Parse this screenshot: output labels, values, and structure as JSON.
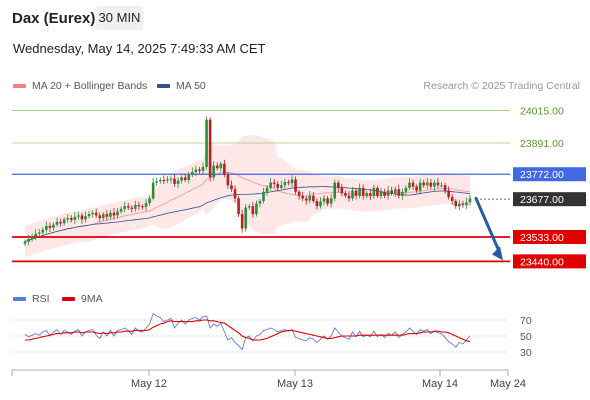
{
  "header": {
    "title": "Dax (Eurex)",
    "timeframe": "30 MIN",
    "datetime": "Wednesday, May 14, 2025 7:49:33 AM CET"
  },
  "legend": {
    "bollinger_label": "MA 20 + Bollinger Bands",
    "ma50_label": "MA 50",
    "credit": "Research © 2025 Trading Central",
    "rsi_label": "RSI",
    "rsi_ma_label": "9MA"
  },
  "colors": {
    "bollinger": "#f08080",
    "ma50": "#2f4f8f",
    "resistance": "#9acd7a",
    "pivot": "#4169e1",
    "support": "#e00000",
    "candle_up": "#2e8b3a",
    "candle_down": "#b22222",
    "arrow": "#2a5aa0",
    "rsi": "#5b7fd6",
    "rsi_ma": "#e00000"
  },
  "chart_data": {
    "type": "candlestick",
    "price_range": [
      23350,
      24070
    ],
    "levels": [
      {
        "value": "24015.00",
        "kind": "resistance"
      },
      {
        "value": "23891.00",
        "kind": "resistance"
      },
      {
        "value": "23772.00",
        "kind": "pivot"
      },
      {
        "value": "23677.00",
        "kind": "last"
      },
      {
        "value": "23533.00",
        "kind": "support"
      },
      {
        "value": "23440.00",
        "kind": "support"
      }
    ],
    "x_labels": [
      "May 12",
      "May 13",
      "May 14",
      "May 24"
    ],
    "projection": {
      "from": 23680,
      "to": 23440
    },
    "close_series": [
      23515,
      23525,
      23535,
      23545,
      23550,
      23560,
      23575,
      23568,
      23580,
      23590,
      23585,
      23600,
      23605,
      23598,
      23610,
      23615,
      23600,
      23612,
      23620,
      23625,
      23615,
      23605,
      23620,
      23610,
      23625,
      23615,
      23630,
      23640,
      23650,
      23645,
      23640,
      23655,
      23650,
      23648,
      23662,
      23680,
      23740,
      23745,
      23750,
      23748,
      23752,
      23755,
      23735,
      23748,
      23760,
      23750,
      23770,
      23780,
      23790,
      23785,
      23800,
      23980,
      23760,
      23805,
      23795,
      23812,
      23770,
      23730,
      23715,
      23680,
      23620,
      23565,
      23645,
      23650,
      23620,
      23660,
      23670,
      23705,
      23720,
      23740,
      23735,
      23720,
      23730,
      23742,
      23738,
      23752,
      23705,
      23690,
      23680,
      23672,
      23690,
      23670,
      23650,
      23668,
      23680,
      23660,
      23680,
      23740,
      23720,
      23700,
      23690,
      23680,
      23710,
      23690,
      23720,
      23690,
      23700,
      23690,
      23720,
      23690,
      23705,
      23690,
      23710,
      23700,
      23715,
      23690,
      23705,
      23720,
      23740,
      23725,
      23710,
      23740,
      23730,
      23740,
      23725,
      23740,
      23730,
      23730,
      23710,
      23685,
      23670,
      23650,
      23660,
      23655,
      23665,
      23680
    ],
    "rsi": {
      "ticks": [
        70,
        50,
        30
      ],
      "range": [
        15,
        80
      ],
      "values": [
        52,
        49,
        51,
        53,
        51,
        55,
        57,
        50,
        55,
        58,
        52,
        57,
        55,
        52,
        56,
        58,
        50,
        55,
        57,
        58,
        51,
        47,
        55,
        50,
        57,
        50,
        57,
        58,
        60,
        57,
        52,
        60,
        56,
        55,
        60,
        65,
        78,
        75,
        73,
        68,
        70,
        72,
        60,
        66,
        70,
        65,
        70,
        72,
        73,
        70,
        74,
        75,
        60,
        65,
        62,
        66,
        55,
        45,
        48,
        42,
        38,
        33,
        48,
        50,
        44,
        50,
        52,
        57,
        58,
        60,
        58,
        55,
        57,
        58,
        56,
        58,
        48,
        47,
        45,
        44,
        48,
        46,
        42,
        46,
        50,
        46,
        50,
        60,
        55,
        50,
        48,
        46,
        55,
        49,
        56,
        49,
        51,
        49,
        56,
        49,
        52,
        48,
        53,
        51,
        55,
        48,
        52,
        55,
        60,
        56,
        52,
        58,
        56,
        58,
        53,
        56,
        54,
        53,
        48,
        43,
        40,
        36,
        42,
        40,
        45,
        50
      ],
      "ma_values": [
        45,
        45,
        46,
        47,
        48,
        49,
        50,
        51,
        52,
        53,
        53,
        54,
        54,
        54,
        55,
        55,
        54,
        55,
        55,
        55,
        54,
        53,
        54,
        53,
        54,
        54,
        55,
        55,
        56,
        56,
        56,
        57,
        57,
        57,
        57,
        58,
        61,
        63,
        65,
        66,
        68,
        69,
        68,
        68,
        68,
        68,
        68,
        68,
        69,
        69,
        70,
        70,
        69,
        69,
        68,
        67,
        66,
        63,
        60,
        57,
        54,
        50,
        48,
        47,
        45,
        45,
        45,
        46,
        47,
        49,
        51,
        53,
        55,
        56,
        57,
        57,
        56,
        55,
        54,
        53,
        52,
        51,
        50,
        49,
        48,
        47,
        47,
        48,
        49,
        50,
        50,
        50,
        50,
        50,
        51,
        51,
        51,
        51,
        51,
        51,
        51,
        51,
        51,
        51,
        51,
        51,
        51,
        52,
        53,
        53,
        53,
        54,
        55,
        55,
        55,
        56,
        56,
        55,
        55,
        54,
        52,
        50,
        48,
        46,
        44,
        43
      ]
    }
  }
}
